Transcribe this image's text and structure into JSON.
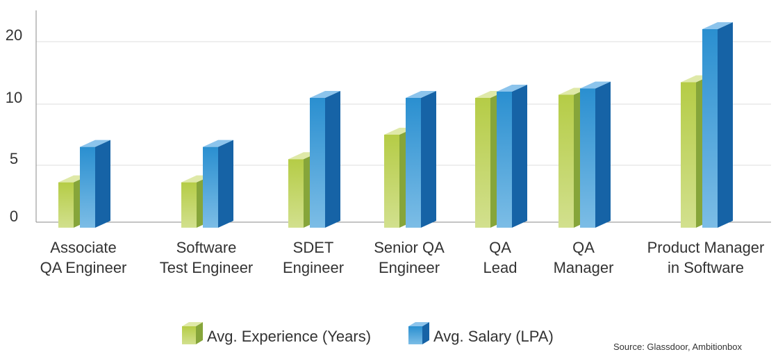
{
  "chart_data": {
    "type": "bar",
    "categories": [
      [
        "Associate",
        "QA Engineer"
      ],
      [
        "Software",
        "Test Engineer"
      ],
      [
        "SDET",
        "Engineer"
      ],
      [
        "Senior QA",
        "Engineer"
      ],
      [
        "QA",
        "Lead"
      ],
      [
        "QA",
        "Manager"
      ],
      [
        "Product Manager",
        "in Software"
      ]
    ],
    "series": [
      {
        "name": "Avg. Experience (Years)",
        "values": [
          3.5,
          3.5,
          5.5,
          7.5,
          11,
          11.5,
          13.5
        ],
        "color": "#a3c14a"
      },
      {
        "name": "Avg. Salary (LPA)",
        "values": [
          6.5,
          6.5,
          11,
          11,
          12,
          12.5,
          22
        ],
        "color": "#2b7bbf"
      }
    ],
    "y_ticks": [
      0,
      5,
      10,
      20
    ],
    "ylim": [
      0,
      25
    ],
    "grid": true,
    "legend_position": "bottom",
    "source": "Source: Glassdoor, Ambitionbox"
  }
}
